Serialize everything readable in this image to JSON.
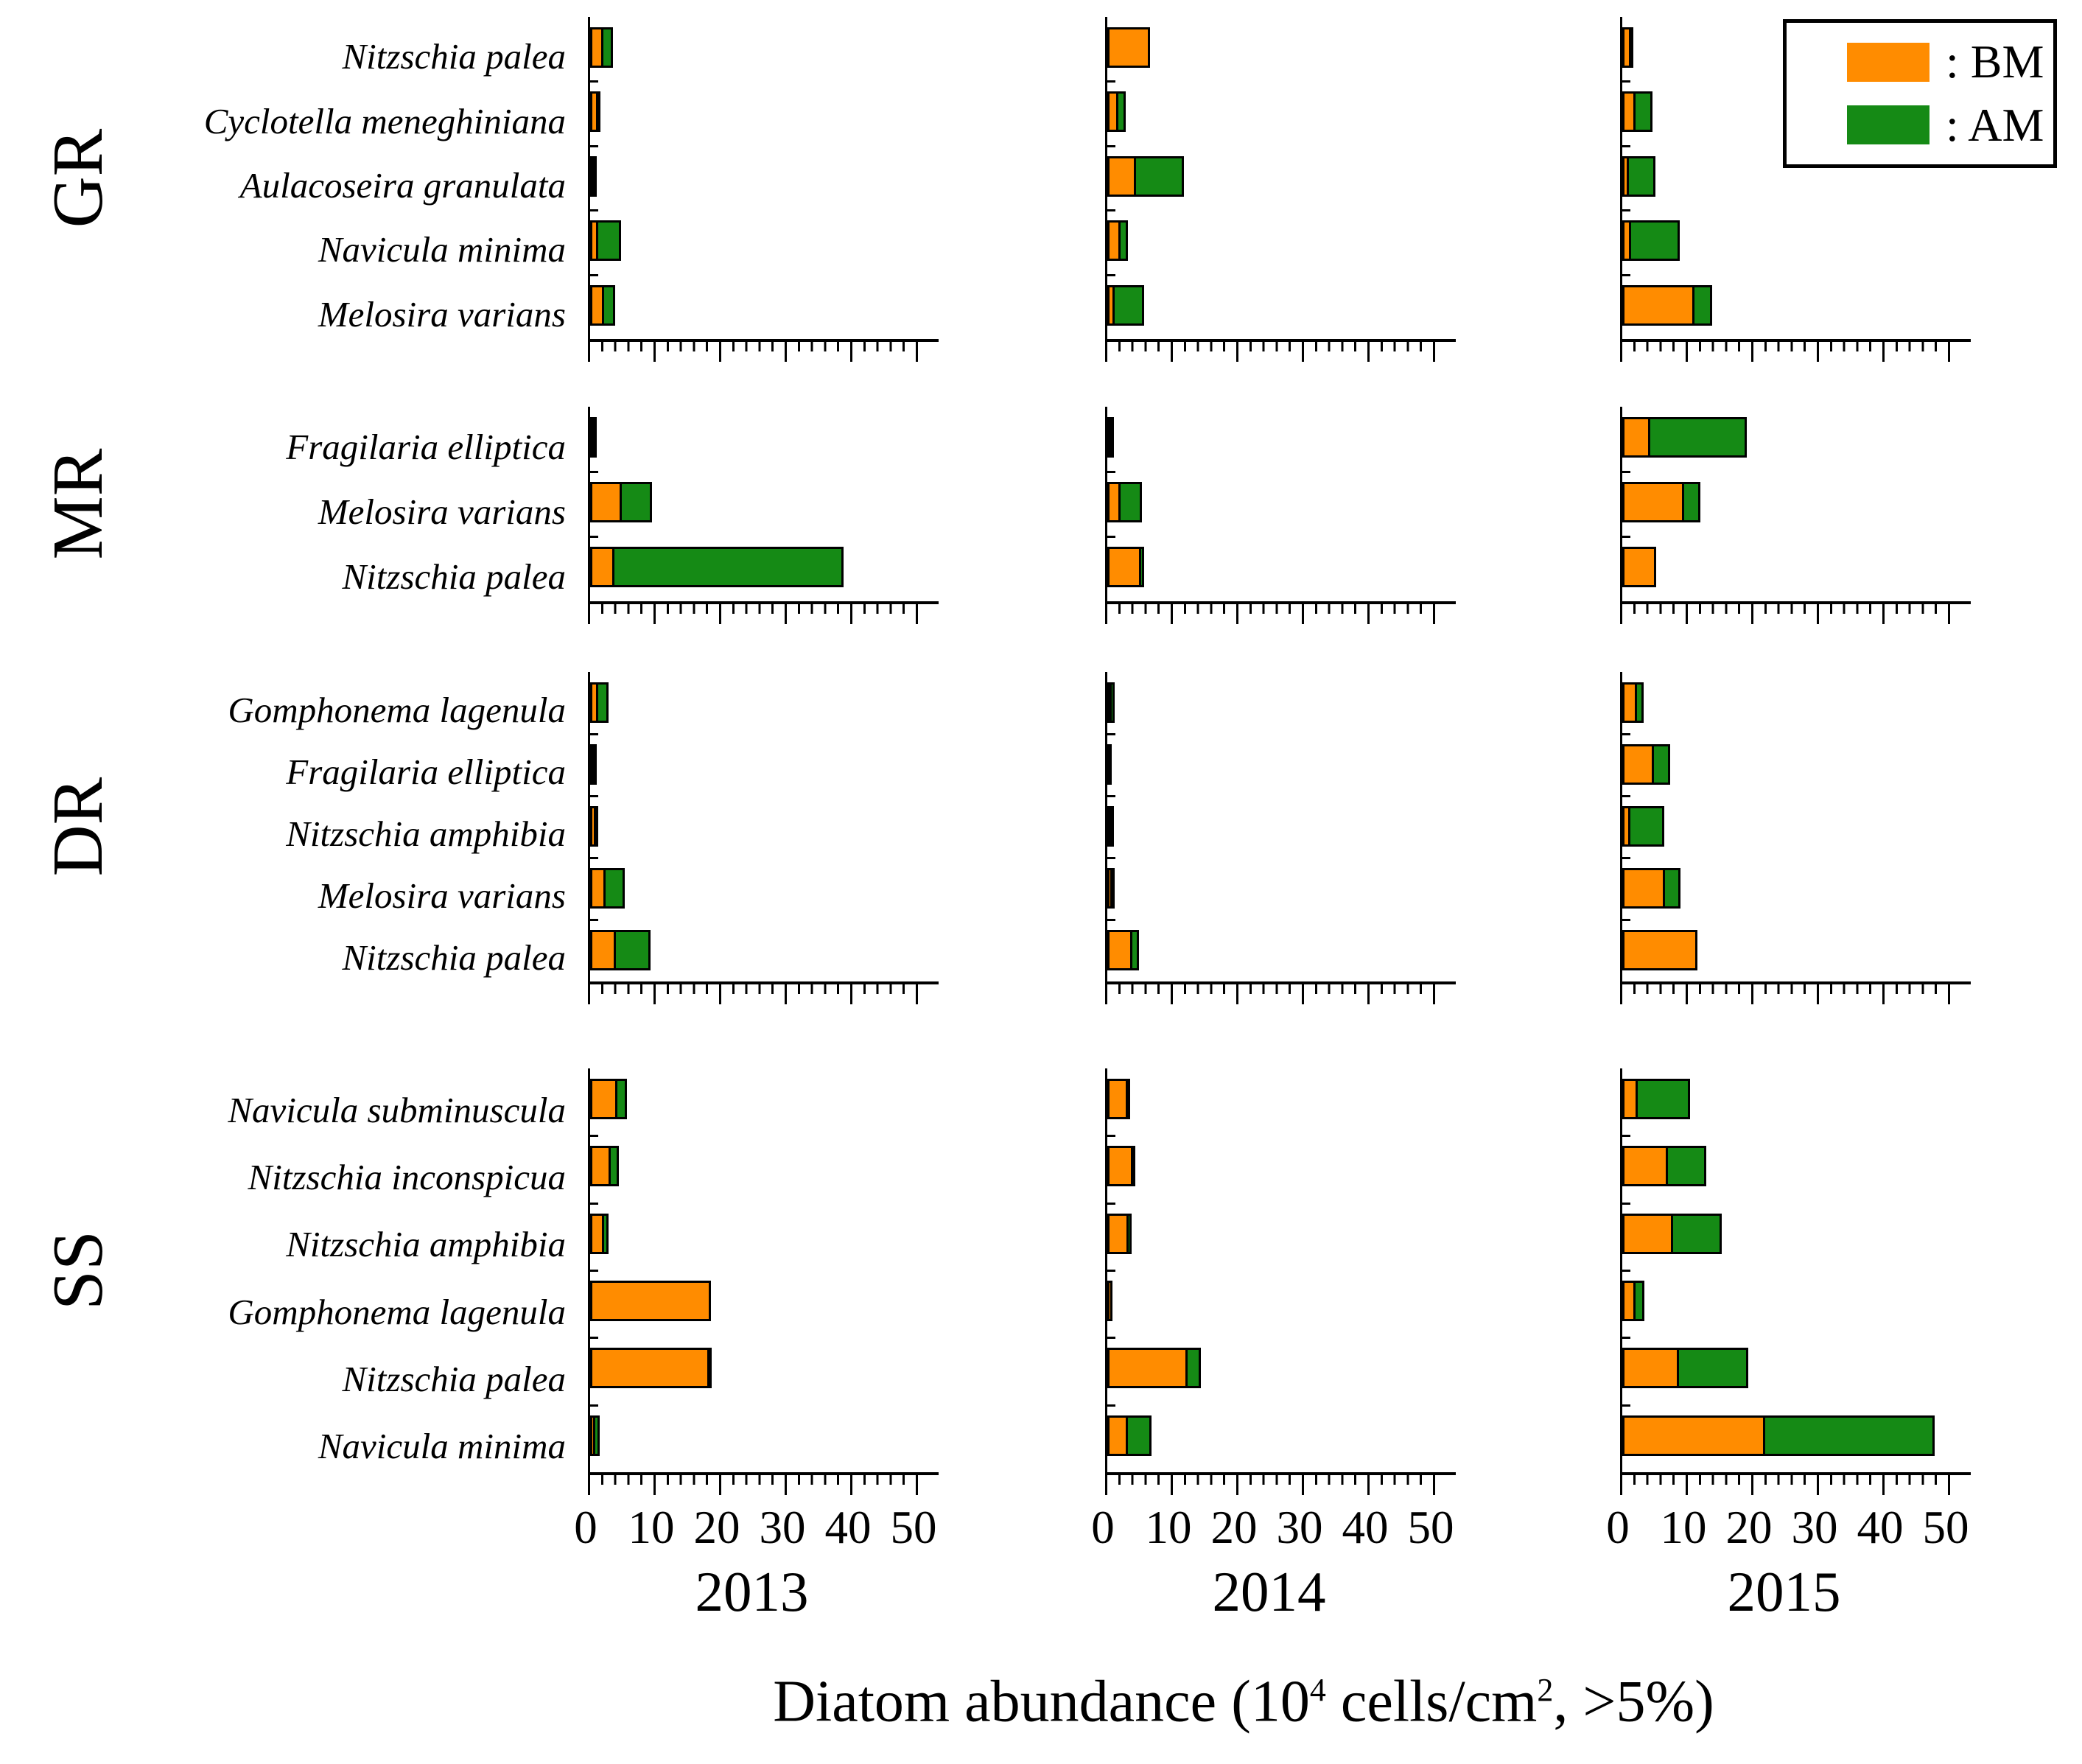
{
  "figure": {
    "xlabel": "Diatom abundance (10⁴ cells/cm², >5%)",
    "xlabel_parts": [
      "Diatom abundance (10",
      "4",
      " cells/cm",
      "2",
      ", >5%)"
    ]
  },
  "chart_data": {
    "type": "bar",
    "orientation": "horizontal",
    "stacked": true,
    "grid": false,
    "legend_position": "top-right",
    "xlim": [
      0,
      50
    ],
    "xticks": [
      0,
      10,
      20,
      30,
      40,
      50
    ],
    "years": [
      "2013",
      "2014",
      "2015"
    ],
    "legend": [
      {
        "name": "BM",
        "label": ": BM",
        "color": "#FF8C00"
      },
      {
        "name": "AM",
        "label": ": AM",
        "color": "#158A15"
      }
    ],
    "value_unit": "10^4 cells/cm^2",
    "sites": [
      {
        "site": "GR",
        "species": [
          "Nitzschia palea",
          "Cyclotella meneghiniana",
          "Aulacoseira granulata",
          "Navicula minima",
          "Melosira varians"
        ],
        "values_by_year": {
          "2013": [
            [
              2.0,
              1.8
            ],
            [
              1.2,
              0.7
            ],
            [
              0.3,
              0.4
            ],
            [
              1.2,
              3.9
            ],
            [
              2.1,
              2.1
            ]
          ],
          "2014": [
            [
              6.5,
              0
            ],
            [
              1.7,
              1.4
            ],
            [
              4.4,
              7.6
            ],
            [
              2.0,
              1.5
            ],
            [
              1.1,
              4.9
            ]
          ],
          "2015": [
            [
              1.3,
              0.3
            ],
            [
              2.0,
              3.0
            ],
            [
              1.0,
              4.4
            ],
            [
              1.4,
              7.7
            ],
            [
              11.0,
              3.0
            ]
          ]
        }
      },
      {
        "site": "MR",
        "species": [
          "Fragilaria elliptica",
          "Melosira varians",
          "Nitzschia palea"
        ],
        "values_by_year": {
          "2013": [
            [
              0.1,
              0.7
            ],
            [
              4.8,
              5.0
            ],
            [
              3.7,
              35.3
            ]
          ],
          "2014": [
            [
              0.6,
              0.15
            ],
            [
              2.0,
              3.6
            ],
            [
              5.2,
              0.8
            ]
          ],
          "2015": [
            [
              4.3,
              15.0
            ],
            [
              9.4,
              2.9
            ],
            [
              5.2,
              0
            ]
          ]
        }
      },
      {
        "site": "DR",
        "species": [
          "Gomphonema lagenula",
          "Fragilaria elliptica",
          "Nitzschia amphibia",
          "Melosira varians",
          "Nitzschia palea"
        ],
        "values_by_year": {
          "2013": [
            [
              1.2,
              1.9
            ],
            [
              0.1,
              0.7
            ],
            [
              0.9,
              0.6
            ],
            [
              2.4,
              3.2
            ],
            [
              3.9,
              5.6
            ]
          ],
          "2014": [
            [
              0.3,
              0.8
            ],
            [
              0.2,
              0
            ],
            [
              0.7,
              0.4
            ],
            [
              0.8,
              0.5
            ],
            [
              3.8,
              1.4
            ]
          ],
          "2015": [
            [
              2.3,
              1.3
            ],
            [
              4.8,
              2.8
            ],
            [
              1.2,
              5.5
            ],
            [
              6.5,
              2.7
            ],
            [
              11.5,
              0
            ]
          ]
        }
      },
      {
        "site": "SS",
        "species": [
          "Navicula subminuscula",
          "Nitzschia inconspicua",
          "Nitzschia amphibia",
          "Gomphonema lagenula",
          "Nitzschia palea",
          "Navicula minima"
        ],
        "values_by_year": {
          "2013": [
            [
              4.2,
              1.7
            ],
            [
              3.2,
              1.5
            ],
            [
              2.1,
              1.1
            ],
            [
              18.4,
              0
            ],
            [
              18.2,
              0.7
            ],
            [
              0.8,
              1.0
            ]
          ],
          "2014": [
            [
              3.2,
              0.6
            ],
            [
              3.9,
              0.6
            ],
            [
              3.3,
              0.7
            ],
            [
              0.8,
              0
            ],
            [
              12.2,
              2.4
            ],
            [
              3.2,
              3.9
            ]
          ],
          "2015": [
            [
              2.4,
              8.3
            ],
            [
              7.0,
              6.2
            ],
            [
              7.7,
              7.8
            ],
            [
              2.0,
              1.7
            ],
            [
              8.6,
              10.9
            ],
            [
              21.8,
              26.2
            ]
          ]
        }
      }
    ]
  }
}
